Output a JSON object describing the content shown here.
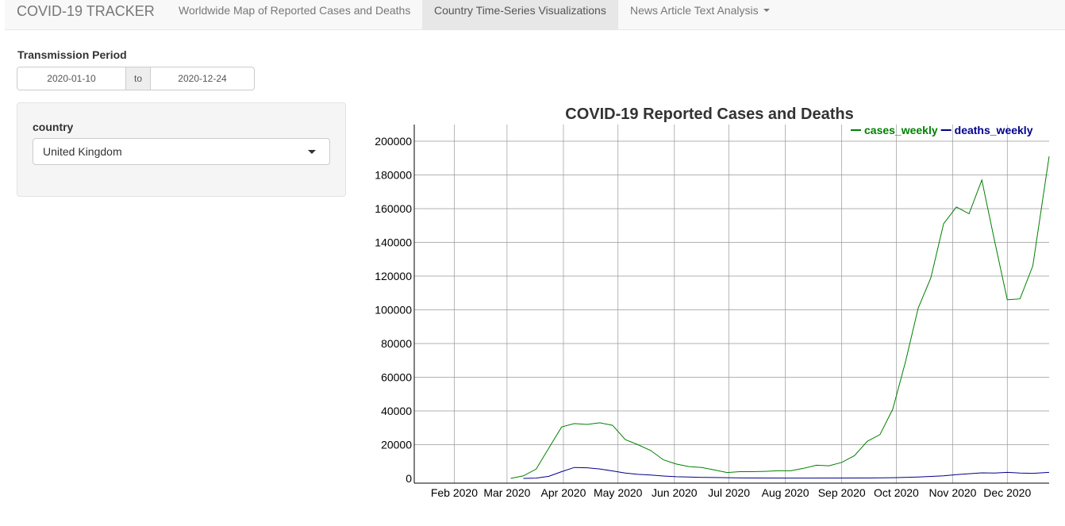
{
  "navbar": {
    "brand": "COVID-19 TRACKER",
    "tabs": [
      {
        "label": "Worldwide Map of Reported Cases and Deaths"
      },
      {
        "label": "Country Time-Series Visualizations"
      },
      {
        "label": "News Article Text Analysis"
      }
    ]
  },
  "sidebar": {
    "period_label": "Transmission Period",
    "start_date": "2020-01-10",
    "sep": "to",
    "end_date": "2020-12-24",
    "country_label": "country",
    "country_value": "United Kingdom"
  },
  "chart_data": {
    "type": "line",
    "title": "COVID-19 Reported Cases and Deaths",
    "xlabel": "",
    "ylabel": "",
    "x_ticks": [
      "Feb 2020",
      "Mar 2020",
      "Apr 2020",
      "May 2020",
      "Jun 2020",
      "Jul 2020",
      "Aug 2020",
      "Sep 2020",
      "Oct 2020",
      "Nov 2020",
      "Dec 2020"
    ],
    "y_ticks": [
      "0",
      "20000",
      "40000",
      "60000",
      "80000",
      "100000",
      "120000",
      "140000",
      "160000",
      "180000",
      "200000"
    ],
    "ylim": [
      0,
      200000
    ],
    "xlim": [
      "2020-01-10",
      "2020-12-24"
    ],
    "grid": true,
    "legend_position": "top-right",
    "colors": {
      "cases_weekly": "#008000",
      "deaths_weekly": "#00008b"
    },
    "series": [
      {
        "name": "cases_weekly",
        "points": [
          [
            "2020-03-03",
            0
          ],
          [
            "2020-03-10",
            1500
          ],
          [
            "2020-03-17",
            5500
          ],
          [
            "2020-03-24",
            18000
          ],
          [
            "2020-03-31",
            30500
          ],
          [
            "2020-04-07",
            32500
          ],
          [
            "2020-04-14",
            32000
          ],
          [
            "2020-04-21",
            33000
          ],
          [
            "2020-04-28",
            31500
          ],
          [
            "2020-05-05",
            23000
          ],
          [
            "2020-05-12",
            20000
          ],
          [
            "2020-05-19",
            16500
          ],
          [
            "2020-05-26",
            11000
          ],
          [
            "2020-06-02",
            8500
          ],
          [
            "2020-06-09",
            7000
          ],
          [
            "2020-06-16",
            6500
          ],
          [
            "2020-06-23",
            5000
          ],
          [
            "2020-06-30",
            3500
          ],
          [
            "2020-07-07",
            4000
          ],
          [
            "2020-07-14",
            4000
          ],
          [
            "2020-07-21",
            4200
          ],
          [
            "2020-07-28",
            4500
          ],
          [
            "2020-08-04",
            4500
          ],
          [
            "2020-08-11",
            6000
          ],
          [
            "2020-08-18",
            7800
          ],
          [
            "2020-08-25",
            7500
          ],
          [
            "2020-09-01",
            9500
          ],
          [
            "2020-09-08",
            13500
          ],
          [
            "2020-09-15",
            22000
          ],
          [
            "2020-09-22",
            26000
          ],
          [
            "2020-09-29",
            41000
          ],
          [
            "2020-10-06",
            69000
          ],
          [
            "2020-10-13",
            101000
          ],
          [
            "2020-10-20",
            119000
          ],
          [
            "2020-10-27",
            151000
          ],
          [
            "2020-11-03",
            161000
          ],
          [
            "2020-11-10",
            157000
          ],
          [
            "2020-11-17",
            177000
          ],
          [
            "2020-11-24",
            141000
          ],
          [
            "2020-12-01",
            106000
          ],
          [
            "2020-12-08",
            106500
          ],
          [
            "2020-12-15",
            126000
          ],
          [
            "2020-12-24",
            191000
          ]
        ]
      },
      {
        "name": "deaths_weekly",
        "points": [
          [
            "2020-03-10",
            0
          ],
          [
            "2020-03-17",
            200
          ],
          [
            "2020-03-24",
            1200
          ],
          [
            "2020-03-31",
            4000
          ],
          [
            "2020-04-07",
            6500
          ],
          [
            "2020-04-14",
            6300
          ],
          [
            "2020-04-21",
            5600
          ],
          [
            "2020-04-28",
            4400
          ],
          [
            "2020-05-05",
            3200
          ],
          [
            "2020-05-12",
            2400
          ],
          [
            "2020-05-19",
            2000
          ],
          [
            "2020-05-26",
            1400
          ],
          [
            "2020-06-02",
            1000
          ],
          [
            "2020-06-09",
            800
          ],
          [
            "2020-06-16",
            600
          ],
          [
            "2020-06-23",
            500
          ],
          [
            "2020-06-30",
            400
          ],
          [
            "2020-07-07",
            300
          ],
          [
            "2020-07-14",
            250
          ],
          [
            "2020-08-04",
            200
          ],
          [
            "2020-09-15",
            250
          ],
          [
            "2020-09-29",
            400
          ],
          [
            "2020-10-13",
            800
          ],
          [
            "2020-10-27",
            1500
          ],
          [
            "2020-11-03",
            2200
          ],
          [
            "2020-11-10",
            2800
          ],
          [
            "2020-11-17",
            3300
          ],
          [
            "2020-11-24",
            3200
          ],
          [
            "2020-12-01",
            3600
          ],
          [
            "2020-12-08",
            3200
          ],
          [
            "2020-12-15",
            3000
          ],
          [
            "2020-12-24",
            3600
          ]
        ]
      }
    ]
  }
}
